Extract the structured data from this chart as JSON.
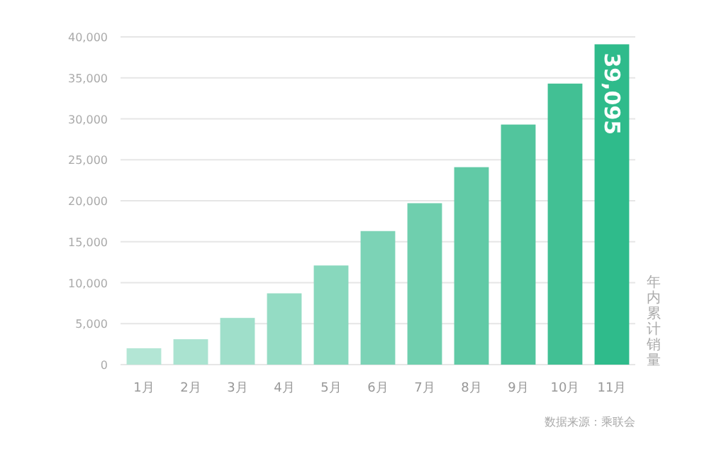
{
  "chart_data": {
    "type": "bar",
    "categories": [
      "1月",
      "2月",
      "3月",
      "4月",
      "5月",
      "6月",
      "7月",
      "8月",
      "9月",
      "10月",
      "11月"
    ],
    "values": [
      2000,
      3100,
      5700,
      8700,
      12100,
      16300,
      19700,
      24100,
      29300,
      34300,
      39095
    ],
    "colors": [
      "#b3e6d5",
      "#aae3d0",
      "#9fdfca",
      "#94dcc4",
      "#88d8bd",
      "#7cd3b6",
      "#6fcfae",
      "#61caa6",
      "#52c59d",
      "#42c094",
      "#2fbb8b"
    ],
    "value_labels": [
      null,
      null,
      null,
      null,
      null,
      null,
      null,
      null,
      null,
      null,
      "39,095"
    ],
    "ylim": [
      0,
      40000
    ],
    "yticks": [
      {
        "value": 0,
        "label": "0"
      },
      {
        "value": 5000,
        "label": "5,000"
      },
      {
        "value": 10000,
        "label": "10,000"
      },
      {
        "value": 15000,
        "label": "15,000"
      },
      {
        "value": 20000,
        "label": "20,000"
      },
      {
        "value": 25000,
        "label": "25,000"
      },
      {
        "value": 30000,
        "label": "30,000"
      },
      {
        "value": 35000,
        "label": "35,000"
      },
      {
        "value": 40000,
        "label": "40,000"
      }
    ],
    "grid": "y",
    "ylabel": "年内累计销量",
    "annotations": [
      "数据来源：乘联会"
    ]
  }
}
